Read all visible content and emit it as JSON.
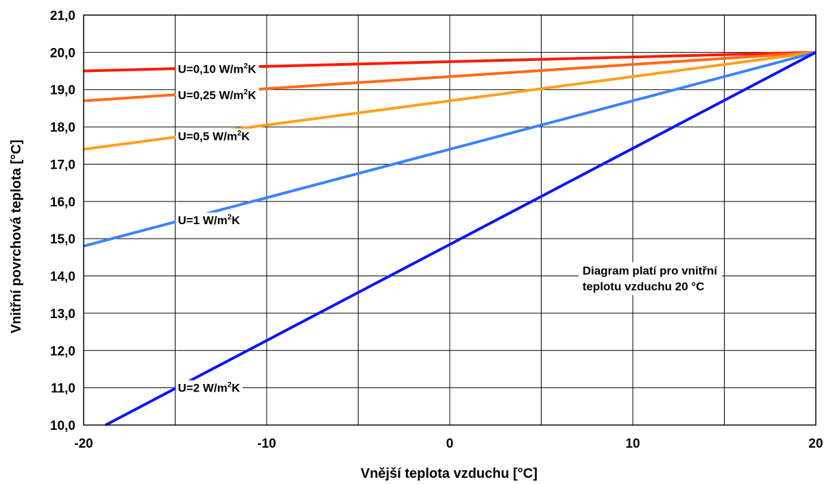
{
  "chart_data": {
    "type": "line",
    "xlabel": "Vnější teplota vzduchu [°C]",
    "ylabel": "Vnitřní povrchová teplota [°C]",
    "xlim": [
      -20,
      20
    ],
    "ylim": [
      10,
      21
    ],
    "xticks": [
      -20,
      -15,
      -10,
      -5,
      0,
      5,
      10,
      15,
      20
    ],
    "xtick_labels": [
      "-20",
      "",
      "-10",
      "",
      "0",
      "",
      "10",
      "",
      "20"
    ],
    "yticks": [
      10,
      11,
      12,
      13,
      14,
      15,
      16,
      17,
      18,
      19,
      20,
      21
    ],
    "ytick_labels": [
      "10,0",
      "11,0",
      "12,0",
      "13,0",
      "14,0",
      "15,0",
      "16,0",
      "17,0",
      "18,0",
      "19,0",
      "20,0",
      "21,0"
    ],
    "grid": true,
    "legend": "none",
    "series": [
      {
        "label": "U=0,10 W/m²K",
        "label_main": "U=0,10 W/m",
        "label_sup": "2",
        "label_tail": "K",
        "color": "#ff1a00",
        "x": [
          -20,
          20
        ],
        "y": [
          19.5,
          20.0
        ],
        "label_at": [
          -15,
          19.56
        ]
      },
      {
        "label": "U=0,25 W/m²K",
        "label_main": "U=0,25 W/m",
        "label_sup": "2",
        "label_tail": "K",
        "color": "#ff6a1a",
        "x": [
          -20,
          20
        ],
        "y": [
          18.7,
          20.0
        ],
        "label_at": [
          -15,
          18.86
        ]
      },
      {
        "label": "U=0,5 W/m²K",
        "label_main": "U=0,5 W/m",
        "label_sup": "2",
        "label_tail": "K",
        "color": "#ffa01e",
        "x": [
          -20,
          20
        ],
        "y": [
          17.4,
          20.0
        ],
        "label_at": [
          -15,
          17.75
        ]
      },
      {
        "label": "U=1 W/m²K",
        "label_main": "U=1 W/m",
        "label_sup": "2",
        "label_tail": "K",
        "color": "#3c82ff",
        "x": [
          -20,
          20
        ],
        "y": [
          14.8,
          20.0
        ],
        "label_at": [
          -15,
          15.5
        ]
      },
      {
        "label": "U=2 W/m²K",
        "label_main": "U=2 W/m",
        "label_sup": "2",
        "label_tail": "K",
        "color": "#0a14ff",
        "x": [
          -18.8,
          20
        ],
        "y": [
          10.0,
          20.0
        ],
        "label_at": [
          -15,
          11.0
        ]
      }
    ],
    "annotation": {
      "lines": [
        "Diagram platí pro vnitřní",
        "teplotu vzduchu 20 °C"
      ],
      "at": [
        11,
        14.0
      ]
    }
  }
}
